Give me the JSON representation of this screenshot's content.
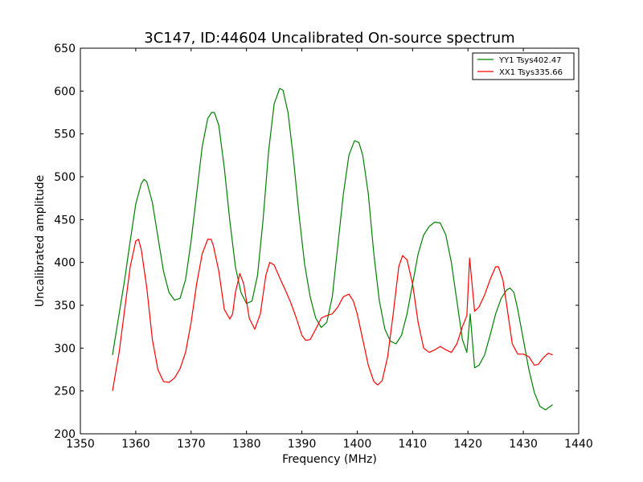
{
  "chart_data": {
    "type": "line",
    "title": "3C147, ID:44604 Uncalibrated On-source spectrum",
    "xlabel": "Frequency (MHz)",
    "ylabel": "Uncalibrated amplitude",
    "xlim": [
      1350,
      1440
    ],
    "ylim": [
      200,
      650
    ],
    "xticks": [
      1350,
      1360,
      1370,
      1380,
      1390,
      1400,
      1410,
      1420,
      1430,
      1440
    ],
    "yticks": [
      200,
      250,
      300,
      350,
      400,
      450,
      500,
      550,
      600,
      650
    ],
    "grid": false,
    "legend_position": "top-right",
    "series": [
      {
        "name": "YY1 Tsys402.47",
        "color": "#008000",
        "points": [
          [
            1355.8,
            292
          ],
          [
            1357,
            340
          ],
          [
            1358,
            380
          ],
          [
            1359,
            425
          ],
          [
            1360,
            468
          ],
          [
            1361,
            492
          ],
          [
            1361.5,
            497
          ],
          [
            1362,
            494
          ],
          [
            1363,
            470
          ],
          [
            1364,
            430
          ],
          [
            1365,
            390
          ],
          [
            1366,
            365
          ],
          [
            1367,
            356
          ],
          [
            1368,
            358
          ],
          [
            1369,
            380
          ],
          [
            1370,
            425
          ],
          [
            1371,
            480
          ],
          [
            1372,
            535
          ],
          [
            1373,
            568
          ],
          [
            1373.7,
            575
          ],
          [
            1374.2,
            575
          ],
          [
            1375,
            560
          ],
          [
            1376,
            510
          ],
          [
            1377,
            448
          ],
          [
            1378,
            395
          ],
          [
            1379,
            365
          ],
          [
            1380,
            352
          ],
          [
            1381,
            355
          ],
          [
            1382,
            385
          ],
          [
            1383,
            450
          ],
          [
            1384,
            530
          ],
          [
            1385,
            585
          ],
          [
            1386,
            603
          ],
          [
            1386.6,
            601
          ],
          [
            1387.5,
            575
          ],
          [
            1388.5,
            520
          ],
          [
            1389.5,
            455
          ],
          [
            1390.5,
            398
          ],
          [
            1391.5,
            360
          ],
          [
            1392.5,
            335
          ],
          [
            1393.5,
            324
          ],
          [
            1394.5,
            330
          ],
          [
            1395.5,
            360
          ],
          [
            1396.5,
            420
          ],
          [
            1397.5,
            480
          ],
          [
            1398.5,
            525
          ],
          [
            1399.5,
            542
          ],
          [
            1400.3,
            540
          ],
          [
            1401,
            525
          ],
          [
            1402,
            480
          ],
          [
            1403,
            410
          ],
          [
            1404,
            355
          ],
          [
            1405,
            322
          ],
          [
            1406,
            308
          ],
          [
            1407,
            305
          ],
          [
            1408,
            315
          ],
          [
            1409,
            340
          ],
          [
            1410,
            375
          ],
          [
            1411,
            410
          ],
          [
            1412,
            432
          ],
          [
            1413,
            442
          ],
          [
            1414,
            447
          ],
          [
            1415,
            446
          ],
          [
            1416,
            432
          ],
          [
            1417,
            400
          ],
          [
            1418,
            355
          ],
          [
            1419,
            310
          ],
          [
            1419.8,
            295
          ],
          [
            1420.4,
            340
          ],
          [
            1421.2,
            277
          ],
          [
            1422,
            280
          ],
          [
            1423,
            292
          ],
          [
            1424,
            315
          ],
          [
            1425,
            340
          ],
          [
            1426,
            358
          ],
          [
            1427,
            368
          ],
          [
            1427.6,
            370
          ],
          [
            1428.3,
            365
          ],
          [
            1429,
            345
          ],
          [
            1430,
            310
          ],
          [
            1431,
            275
          ],
          [
            1432,
            248
          ],
          [
            1433,
            232
          ],
          [
            1434,
            228
          ],
          [
            1435.3,
            234
          ]
        ]
      },
      {
        "name": "XX1 Tsys335.66",
        "color": "#ff0000",
        "points": [
          [
            1355.8,
            250
          ],
          [
            1357,
            295
          ],
          [
            1358,
            345
          ],
          [
            1359,
            395
          ],
          [
            1360,
            425
          ],
          [
            1360.5,
            427
          ],
          [
            1361,
            415
          ],
          [
            1362,
            370
          ],
          [
            1363,
            310
          ],
          [
            1364,
            275
          ],
          [
            1365,
            261
          ],
          [
            1366,
            260
          ],
          [
            1367,
            265
          ],
          [
            1368,
            276
          ],
          [
            1369,
            295
          ],
          [
            1370,
            330
          ],
          [
            1371,
            375
          ],
          [
            1372,
            410
          ],
          [
            1373,
            427
          ],
          [
            1373.6,
            427
          ],
          [
            1374,
            420
          ],
          [
            1375,
            390
          ],
          [
            1376,
            345
          ],
          [
            1377,
            334
          ],
          [
            1377.5,
            340
          ],
          [
            1378,
            365
          ],
          [
            1378.8,
            387
          ],
          [
            1379.5,
            375
          ],
          [
            1380.5,
            335
          ],
          [
            1381.5,
            322
          ],
          [
            1382.5,
            340
          ],
          [
            1383.5,
            385
          ],
          [
            1384.2,
            400
          ],
          [
            1385,
            397
          ],
          [
            1386,
            382
          ],
          [
            1387,
            368
          ],
          [
            1388,
            353
          ],
          [
            1389,
            335
          ],
          [
            1390,
            315
          ],
          [
            1390.7,
            309
          ],
          [
            1391.5,
            310
          ],
          [
            1392.5,
            322
          ],
          [
            1393.5,
            335
          ],
          [
            1394.5,
            338
          ],
          [
            1395.5,
            340
          ],
          [
            1396.5,
            348
          ],
          [
            1397.5,
            360
          ],
          [
            1398.5,
            363
          ],
          [
            1399.3,
            355
          ],
          [
            1400,
            340
          ],
          [
            1401,
            310
          ],
          [
            1402,
            280
          ],
          [
            1403,
            261
          ],
          [
            1403.7,
            257
          ],
          [
            1404.5,
            262
          ],
          [
            1405.5,
            290
          ],
          [
            1406.5,
            340
          ],
          [
            1407.5,
            395
          ],
          [
            1408.2,
            408
          ],
          [
            1409,
            403
          ],
          [
            1410,
            375
          ],
          [
            1411,
            330
          ],
          [
            1412,
            300
          ],
          [
            1413,
            295
          ],
          [
            1414,
            298
          ],
          [
            1415,
            302
          ],
          [
            1416,
            298
          ],
          [
            1417,
            295
          ],
          [
            1418,
            305
          ],
          [
            1419,
            325
          ],
          [
            1419.8,
            338
          ],
          [
            1420.3,
            405
          ],
          [
            1421.2,
            343
          ],
          [
            1422,
            348
          ],
          [
            1423,
            362
          ],
          [
            1424,
            380
          ],
          [
            1425,
            395
          ],
          [
            1425.5,
            395
          ],
          [
            1426.3,
            380
          ],
          [
            1427,
            350
          ],
          [
            1428,
            305
          ],
          [
            1429,
            293
          ],
          [
            1430,
            293
          ],
          [
            1431,
            290
          ],
          [
            1432,
            280
          ],
          [
            1432.7,
            281
          ],
          [
            1433.5,
            288
          ],
          [
            1434.5,
            294
          ],
          [
            1435.3,
            292
          ]
        ]
      }
    ]
  }
}
